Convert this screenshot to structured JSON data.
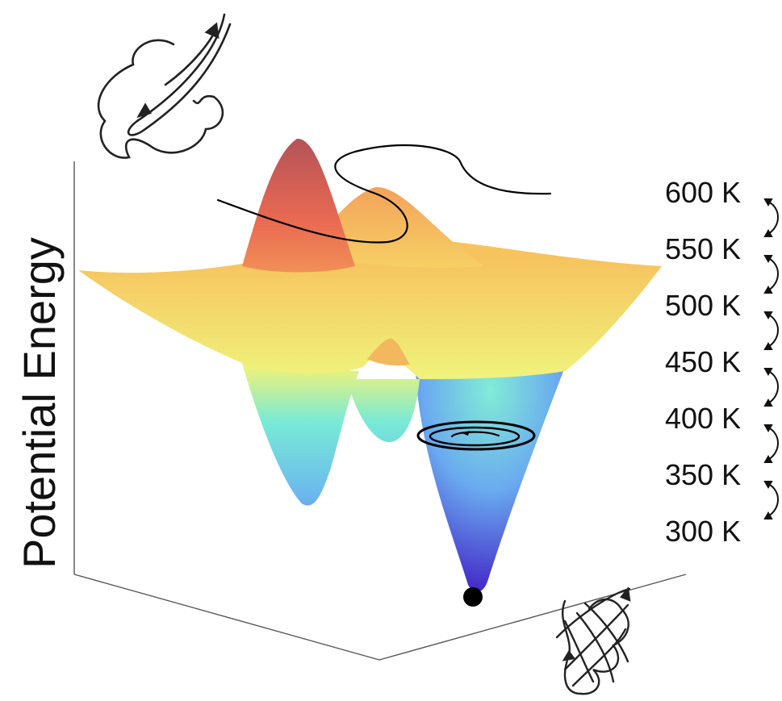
{
  "diagram": {
    "axis_label": "Potential Energy",
    "temperatures": [
      "600 K",
      "550 K",
      "500 K",
      "450 K",
      "400 K",
      "350 K",
      "300 K"
    ],
    "colors": {
      "peak": "#b85a60",
      "high": "#f08a5a",
      "mid_high": "#f6d257",
      "mid": "#eef27a",
      "low_mid": "#74e8d4",
      "low": "#6fb8ee",
      "basin": "#5a3fd8",
      "grid": "#7f7f7f"
    },
    "icons": {
      "unfolded": "unfolded-chain-icon",
      "folded": "folded-protein-icon",
      "minimum": "global-minimum-dot",
      "exchange": "replica-exchange-arrow-icon"
    }
  }
}
